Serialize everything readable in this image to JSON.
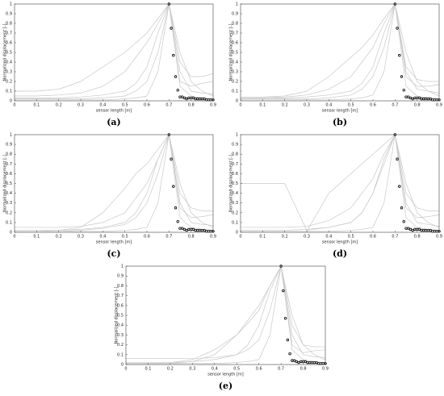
{
  "chart_data": [
    {
      "type": "line",
      "caption": "(a)",
      "xlabel": "sensor length [m]",
      "ylabel": "Normalized displacement [-]",
      "xlim": [
        0,
        0.9
      ],
      "ylim": [
        0,
        1
      ],
      "xticks": [
        0,
        0.1,
        0.2,
        0.3,
        0.4,
        0.5,
        0.6,
        0.7,
        0.8,
        0.9
      ],
      "yticks": [
        0,
        0.1,
        0.2,
        0.3,
        0.4,
        0.5,
        0.6,
        0.7,
        0.8,
        0.9,
        1
      ],
      "x": [
        0,
        0.1,
        0.2,
        0.3,
        0.4,
        0.5,
        0.55,
        0.6,
        0.65,
        0.7,
        0.75,
        0.8,
        0.85,
        0.9
      ],
      "series": [
        {
          "color": "#c8c8c8",
          "values": [
            0.02,
            0.02,
            0.02,
            0.02,
            0.03,
            0.05,
            0.1,
            0.2,
            0.5,
            1,
            0.3,
            0.1,
            0.08,
            0.07
          ]
        },
        {
          "color": "#c8c8c8",
          "values": [
            0.05,
            0.05,
            0.06,
            0.08,
            0.15,
            0.3,
            0.45,
            0.6,
            0.8,
            1,
            0.2,
            0.15,
            0.18,
            0.2
          ]
        },
        {
          "color": "#c8c8c8",
          "values": [
            0.01,
            0.01,
            0.01,
            0.01,
            0.01,
            0.02,
            0.03,
            0.05,
            0.3,
            1,
            0.15,
            0.05,
            0.03,
            0.02
          ]
        },
        {
          "color": "#c8c8c8",
          "values": [
            0.1,
            0.1,
            0.12,
            0.2,
            0.35,
            0.5,
            0.6,
            0.7,
            0.85,
            1,
            0.4,
            0.25,
            0.25,
            0.28
          ]
        },
        {
          "color": "#c8c8c8",
          "values": [
            0.03,
            0.03,
            0.03,
            0.04,
            0.06,
            0.1,
            0.18,
            0.35,
            0.7,
            1,
            0.5,
            0.2,
            0.1,
            0.05
          ]
        }
      ],
      "markers": {
        "color": "#000000",
        "x": [
          0.7,
          0.71,
          0.72,
          0.73,
          0.74,
          0.75,
          0.76,
          0.77,
          0.78,
          0.79,
          0.8,
          0.81,
          0.82,
          0.83,
          0.84,
          0.85,
          0.86,
          0.87,
          0.88,
          0.89,
          0.9
        ],
        "values": [
          1,
          0.75,
          0.47,
          0.25,
          0.11,
          0.04,
          0.04,
          0.03,
          0.02,
          0.03,
          0.03,
          0.03,
          0.02,
          0.02,
          0.02,
          0.02,
          0.02,
          0.01,
          0.01,
          0.01,
          0.01
        ]
      }
    },
    {
      "type": "line",
      "caption": "(b)",
      "xlabel": "sensor length [m]",
      "ylabel": "Normalized displacement [-]",
      "xlim": [
        0,
        0.9
      ],
      "ylim": [
        0,
        1
      ],
      "xticks": [
        0,
        0.1,
        0.2,
        0.3,
        0.4,
        0.5,
        0.6,
        0.7,
        0.8,
        0.9
      ],
      "yticks": [
        0,
        0.1,
        0.2,
        0.3,
        0.4,
        0.5,
        0.6,
        0.7,
        0.8,
        0.9,
        1
      ],
      "x": [
        0,
        0.1,
        0.2,
        0.3,
        0.4,
        0.5,
        0.55,
        0.6,
        0.65,
        0.7,
        0.75,
        0.8,
        0.85,
        0.9
      ],
      "series": [
        {
          "color": "#c8c8c8",
          "values": [
            0.02,
            0.02,
            0.02,
            0.02,
            0.03,
            0.06,
            0.12,
            0.25,
            0.55,
            1,
            0.3,
            0.12,
            0.1,
            0.08
          ]
        },
        {
          "color": "#c8c8c8",
          "values": [
            0.03,
            0.03,
            0.04,
            0.06,
            0.12,
            0.25,
            0.4,
            0.55,
            0.8,
            1,
            0.25,
            0.15,
            0.15,
            0.17
          ]
        },
        {
          "color": "#c8c8c8",
          "values": [
            0.01,
            0.01,
            0.01,
            0.01,
            0.01,
            0.02,
            0.03,
            0.06,
            0.3,
            1,
            0.15,
            0.05,
            0.03,
            0.02
          ]
        },
        {
          "color": "#c8c8c8",
          "values": [
            0.04,
            0.04,
            0.05,
            0.1,
            0.25,
            0.45,
            0.55,
            0.68,
            0.85,
            1,
            0.35,
            0.22,
            0.2,
            0.2
          ]
        },
        {
          "color": "#c8c8c8",
          "values": [
            0.03,
            0.03,
            0.03,
            0.04,
            0.06,
            0.1,
            0.18,
            0.35,
            0.7,
            1,
            0.5,
            0.2,
            0.1,
            0.05
          ]
        }
      ],
      "markers": {
        "color": "#000000",
        "x": [
          0.7,
          0.71,
          0.72,
          0.73,
          0.74,
          0.75,
          0.76,
          0.77,
          0.78,
          0.79,
          0.8,
          0.81,
          0.82,
          0.83,
          0.84,
          0.85,
          0.86,
          0.87,
          0.88,
          0.89,
          0.9
        ],
        "values": [
          1,
          0.75,
          0.47,
          0.25,
          0.11,
          0.04,
          0.04,
          0.03,
          0.02,
          0.03,
          0.03,
          0.03,
          0.02,
          0.02,
          0.02,
          0.02,
          0.02,
          0.01,
          0.01,
          0.01,
          0.01
        ]
      }
    },
    {
      "type": "line",
      "caption": "(c)",
      "xlabel": "sensor length [m]",
      "ylabel": "Normalized displacement [-]",
      "xlim": [
        0,
        0.9
      ],
      "ylim": [
        0,
        1
      ],
      "xticks": [
        0,
        0.1,
        0.2,
        0.3,
        0.4,
        0.5,
        0.6,
        0.7,
        0.8,
        0.9
      ],
      "yticks": [
        0,
        0.1,
        0.2,
        0.3,
        0.4,
        0.5,
        0.6,
        0.7,
        0.8,
        0.9,
        1
      ],
      "x": [
        0,
        0.1,
        0.2,
        0.3,
        0.4,
        0.5,
        0.55,
        0.6,
        0.65,
        0.7,
        0.75,
        0.8,
        0.85,
        0.9
      ],
      "series": [
        {
          "color": "#c8c8c8",
          "values": [
            0.01,
            0.01,
            0.01,
            0.02,
            0.04,
            0.08,
            0.15,
            0.3,
            0.6,
            1,
            0.3,
            0.1,
            0.08,
            0.07
          ]
        },
        {
          "color": "#c8c8c8",
          "values": [
            0.05,
            0.05,
            0.05,
            0.06,
            0.1,
            0.2,
            0.35,
            0.5,
            0.75,
            1,
            0.25,
            0.15,
            0.16,
            0.18
          ]
        },
        {
          "color": "#c8c8c8",
          "values": [
            0.01,
            0.01,
            0.01,
            0.01,
            0.01,
            0.02,
            0.03,
            0.05,
            0.3,
            1,
            0.15,
            0.05,
            0.03,
            0.02
          ]
        },
        {
          "color": "#c8c8c8",
          "values": [
            0.01,
            0.01,
            0.02,
            0.05,
            0.2,
            0.45,
            0.6,
            0.7,
            0.85,
            1,
            0.4,
            0.25,
            0.22,
            0.22
          ]
        },
        {
          "color": "#c8c8c8",
          "values": [
            0.02,
            0.02,
            0.02,
            0.03,
            0.05,
            0.1,
            0.2,
            0.4,
            0.75,
            1,
            0.5,
            0.2,
            0.1,
            0.05
          ]
        }
      ],
      "markers": {
        "color": "#000000",
        "x": [
          0.7,
          0.71,
          0.72,
          0.73,
          0.74,
          0.75,
          0.76,
          0.77,
          0.78,
          0.79,
          0.8,
          0.81,
          0.82,
          0.83,
          0.84,
          0.85,
          0.86,
          0.87,
          0.88,
          0.89,
          0.9
        ],
        "values": [
          1,
          0.75,
          0.47,
          0.25,
          0.11,
          0.04,
          0.04,
          0.03,
          0.02,
          0.03,
          0.03,
          0.03,
          0.02,
          0.02,
          0.02,
          0.02,
          0.02,
          0.01,
          0.01,
          0.01,
          0.01
        ]
      }
    },
    {
      "type": "line",
      "caption": "(d)",
      "xlabel": "sensor length [m]",
      "ylabel": "Normalized displacement [-]",
      "xlim": [
        0,
        0.9
      ],
      "ylim": [
        0,
        1
      ],
      "xticks": [
        0,
        0.1,
        0.2,
        0.3,
        0.4,
        0.5,
        0.6,
        0.7,
        0.8,
        0.9
      ],
      "yticks": [
        0,
        0.1,
        0.2,
        0.3,
        0.4,
        0.5,
        0.6,
        0.7,
        0.8,
        0.9,
        1
      ],
      "x": [
        0,
        0.1,
        0.2,
        0.3,
        0.4,
        0.5,
        0.55,
        0.6,
        0.65,
        0.7,
        0.75,
        0.8,
        0.85,
        0.9
      ],
      "series": [
        {
          "color": "#c8c8c8",
          "values": [
            0.5,
            0.5,
            0.5,
            0.02,
            0.05,
            0.1,
            0.2,
            0.4,
            0.7,
            1,
            0.3,
            0.1,
            0.08,
            0.06
          ]
        },
        {
          "color": "#c8c8c8",
          "values": [
            0.05,
            0.05,
            0.05,
            0.06,
            0.12,
            0.25,
            0.4,
            0.55,
            0.8,
            1,
            0.25,
            0.15,
            0.16,
            0.18
          ]
        },
        {
          "color": "#c8c8c8",
          "values": [
            0.01,
            0.01,
            0.01,
            0.01,
            0.01,
            0.02,
            0.03,
            0.05,
            0.3,
            1,
            0.15,
            0.05,
            0.03,
            0.02
          ]
        },
        {
          "color": "#c8c8c8",
          "values": [
            0.01,
            0.01,
            0.01,
            0.01,
            0.4,
            0.6,
            0.7,
            0.8,
            0.9,
            1,
            0.4,
            0.25,
            0.22,
            0.22
          ]
        },
        {
          "color": "#c8c8c8",
          "values": [
            0.02,
            0.02,
            0.02,
            0.03,
            0.05,
            0.1,
            0.2,
            0.4,
            0.75,
            1,
            0.5,
            0.2,
            0.1,
            0.05
          ]
        }
      ],
      "markers": {
        "color": "#000000",
        "x": [
          0.7,
          0.71,
          0.72,
          0.73,
          0.74,
          0.75,
          0.76,
          0.77,
          0.78,
          0.79,
          0.8,
          0.81,
          0.82,
          0.83,
          0.84,
          0.85,
          0.86,
          0.87,
          0.88,
          0.89,
          0.9
        ],
        "values": [
          1,
          0.75,
          0.47,
          0.25,
          0.11,
          0.04,
          0.04,
          0.03,
          0.02,
          0.03,
          0.03,
          0.03,
          0.02,
          0.02,
          0.02,
          0.02,
          0.02,
          0.01,
          0.01,
          0.01,
          0.01
        ]
      }
    },
    {
      "type": "line",
      "caption": "(e)",
      "xlabel": "sensor length [m]",
      "ylabel": "Normalized displacement [-]",
      "xlim": [
        0,
        0.9
      ],
      "ylim": [
        0,
        1
      ],
      "xticks": [
        0,
        0.1,
        0.2,
        0.3,
        0.4,
        0.5,
        0.6,
        0.7,
        0.8,
        0.9
      ],
      "yticks": [
        0,
        0.1,
        0.2,
        0.3,
        0.4,
        0.5,
        0.6,
        0.7,
        0.8,
        0.9,
        1
      ],
      "x": [
        0,
        0.1,
        0.2,
        0.3,
        0.4,
        0.5,
        0.55,
        0.6,
        0.65,
        0.7,
        0.75,
        0.8,
        0.85,
        0.9
      ],
      "series": [
        {
          "color": "#c8c8c8",
          "values": [
            0.06,
            0.06,
            0.06,
            0.06,
            0.07,
            0.1,
            0.15,
            0.25,
            0.55,
            1,
            0.3,
            0.1,
            0.08,
            0.07
          ]
        },
        {
          "color": "#c8c8c8",
          "values": [
            0.01,
            0.01,
            0.02,
            0.05,
            0.15,
            0.3,
            0.42,
            0.55,
            0.8,
            1,
            0.2,
            0.12,
            0.14,
            0.15
          ]
        },
        {
          "color": "#c8c8c8",
          "values": [
            0.01,
            0.01,
            0.01,
            0.01,
            0.01,
            0.02,
            0.03,
            0.05,
            0.3,
            1,
            0.15,
            0.05,
            0.03,
            0.02
          ]
        },
        {
          "color": "#c8c8c8",
          "values": [
            0.01,
            0.01,
            0.01,
            0.03,
            0.1,
            0.3,
            0.45,
            0.6,
            0.8,
            1,
            0.4,
            0.2,
            0.18,
            0.18
          ]
        },
        {
          "color": "#c8c8c8",
          "values": [
            0.02,
            0.02,
            0.02,
            0.03,
            0.05,
            0.1,
            0.2,
            0.4,
            0.75,
            1,
            0.5,
            0.2,
            0.1,
            0.05
          ]
        }
      ],
      "markers": {
        "color": "#000000",
        "x": [
          0.7,
          0.71,
          0.72,
          0.73,
          0.74,
          0.75,
          0.76,
          0.77,
          0.78,
          0.79,
          0.8,
          0.81,
          0.82,
          0.83,
          0.84,
          0.85,
          0.86,
          0.87,
          0.88,
          0.89,
          0.9
        ],
        "values": [
          1,
          0.75,
          0.47,
          0.25,
          0.11,
          0.04,
          0.04,
          0.03,
          0.02,
          0.03,
          0.03,
          0.03,
          0.02,
          0.02,
          0.02,
          0.02,
          0.02,
          0.01,
          0.01,
          0.01,
          0.01
        ]
      }
    }
  ]
}
